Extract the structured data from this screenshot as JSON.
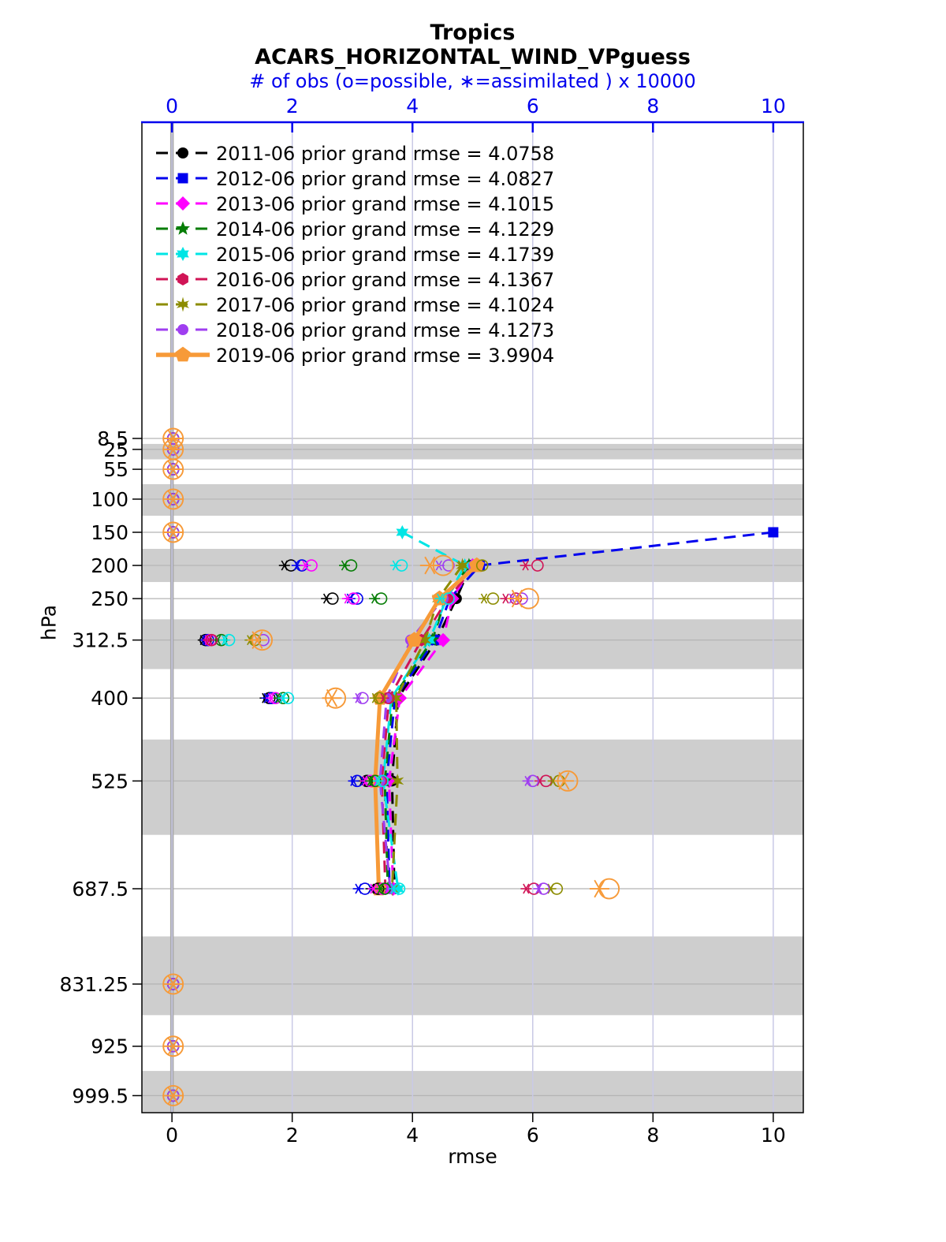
{
  "chart_data": {
    "type": "line",
    "title": "Tropics",
    "subtitle": "ACARS_HORIZONTAL_WIND_VPguess",
    "top_axis_label": "# of obs (o=possible, ∗=assimilated ) x 10000",
    "xlabel": "rmse",
    "ylabel": "hPa",
    "x_ticks": [
      0,
      2,
      4,
      6,
      8,
      10
    ],
    "top_ticks": [
      0,
      2,
      4,
      6,
      8,
      10
    ],
    "xlim": [
      -0.5,
      10.5
    ],
    "levels": [
      8.5,
      25,
      55,
      100,
      150,
      200,
      250,
      312.5,
      400,
      525,
      687.5,
      831.25,
      925,
      999.5
    ],
    "shaded_levels": [
      25,
      100,
      200,
      312.5,
      525,
      831.25,
      999.5
    ],
    "grid": true,
    "legend_position": "upper-left-inside",
    "colors": {
      "axis_top": "#0000ee",
      "band": "#cecece",
      "hgrid": "#b4b4b4",
      "vgrid": "#c9c9e6",
      "zero_line": "#a8a8a8"
    },
    "series": [
      {
        "label": "2011-06 prior grand rmse = 4.0758",
        "year": "2011-06",
        "grand_rmse": 4.0758,
        "color": "#000000",
        "marker": "circle",
        "line": "dashed",
        "rmse": {
          "200": 4.97,
          "250": 4.73,
          "312.5": 4.4,
          "400": 3.76,
          "525": 3.66,
          "687.5": 3.7
        },
        "assimilated": {
          "8.5": 0.02,
          "25": 0.02,
          "55": 0.02,
          "100": 0.02,
          "150": 0.02,
          "200": 1.87,
          "250": 2.57,
          "312.5": 0.52,
          "400": 1.55,
          "525": 3.17,
          "687.5": 3.31,
          "831.25": 0.02,
          "925": 0.02,
          "999.5": 0.02
        },
        "possible": {
          "8.5": 0.02,
          "25": 0.02,
          "55": 0.02,
          "100": 0.02,
          "150": 0.02,
          "200": 1.98,
          "250": 2.67,
          "312.5": 0.56,
          "400": 1.62,
          "525": 3.24,
          "687.5": 3.43,
          "831.25": 0.02,
          "925": 0.02,
          "999.5": 0.02
        }
      },
      {
        "label": "2012-06 prior grand rmse = 4.0827",
        "year": "2012-06",
        "grand_rmse": 4.0827,
        "color": "#0000ee",
        "marker": "square",
        "line": "dashed",
        "rmse": {
          "150": 10.0,
          "200": 5.12,
          "250": 4.62,
          "312.5": 4.37,
          "400": 3.71,
          "525": 3.57,
          "687.5": 3.62
        },
        "assimilated": {
          "8.5": 0.02,
          "25": 0.02,
          "55": 0.02,
          "100": 0.02,
          "150": 0.02,
          "200": 2.08,
          "250": 2.96,
          "312.5": 0.56,
          "400": 1.58,
          "525": 3.02,
          "687.5": 3.1,
          "831.25": 0.02,
          "925": 0.02,
          "999.5": 0.02
        },
        "possible": {
          "8.5": 0.02,
          "25": 0.02,
          "55": 0.02,
          "100": 0.02,
          "150": 0.02,
          "200": 2.16,
          "250": 3.08,
          "312.5": 0.6,
          "400": 1.66,
          "525": 3.08,
          "687.5": 3.21,
          "831.25": 0.02,
          "925": 0.02,
          "999.5": 0.02
        }
      },
      {
        "label": "2013-06 prior grand rmse = 4.1015",
        "year": "2013-06",
        "grand_rmse": 4.1015,
        "color": "#ff00ff",
        "marker": "diamond",
        "line": "dashed",
        "rmse": {
          "200": 5.0,
          "250": 4.66,
          "312.5": 4.51,
          "400": 3.79,
          "525": 3.61,
          "687.5": 3.68
        },
        "assimilated": {
          "8.5": 0.02,
          "25": 0.02,
          "55": 0.02,
          "100": 0.02,
          "150": 0.02,
          "200": 2.22,
          "250": 2.92,
          "312.5": 0.6,
          "400": 1.65,
          "525": 3.22,
          "687.5": 3.35,
          "831.25": 0.02,
          "925": 0.02,
          "999.5": 0.02
        },
        "possible": {
          "8.5": 0.02,
          "25": 0.02,
          "55": 0.02,
          "100": 0.02,
          "150": 0.02,
          "200": 2.32,
          "250": 3.02,
          "312.5": 0.64,
          "400": 1.72,
          "525": 3.3,
          "687.5": 3.5,
          "831.25": 0.02,
          "925": 0.02,
          "999.5": 0.02
        }
      },
      {
        "label": "2014-06 prior grand rmse = 4.1229",
        "year": "2014-06",
        "grand_rmse": 4.1229,
        "color": "#067d06",
        "marker": "star5",
        "line": "dashed",
        "rmse": {
          "200": 4.94,
          "250": 4.55,
          "312.5": 4.33,
          "400": 3.67,
          "525": 3.54,
          "687.5": 3.59
        },
        "assimilated": {
          "8.5": 0.02,
          "25": 0.02,
          "55": 0.02,
          "100": 0.02,
          "150": 0.02,
          "200": 2.87,
          "250": 3.37,
          "312.5": 0.76,
          "400": 1.78,
          "525": 3.3,
          "687.5": 3.47,
          "831.25": 0.02,
          "925": 0.02,
          "999.5": 0.02
        },
        "possible": {
          "8.5": 0.02,
          "25": 0.02,
          "55": 0.02,
          "100": 0.02,
          "150": 0.02,
          "200": 2.98,
          "250": 3.48,
          "312.5": 0.82,
          "400": 1.85,
          "525": 3.38,
          "687.5": 3.54,
          "831.25": 0.02,
          "925": 0.02,
          "999.5": 0.02
        }
      },
      {
        "label": "2015-06 prior grand rmse = 4.1739",
        "year": "2015-06",
        "grand_rmse": 4.1739,
        "color": "#00e5e5",
        "marker": "hexagram",
        "line": "dashed",
        "rmse": {
          "150": 3.83,
          "200": 4.87,
          "250": 4.57,
          "312.5": 4.28,
          "400": 3.65,
          "525": 3.51,
          "687.5": 3.76
        },
        "assimilated": {
          "8.5": 0.02,
          "25": 0.02,
          "55": 0.02,
          "100": 0.02,
          "150": 0.02,
          "200": 3.72,
          "250": 4.46,
          "312.5": 0.88,
          "400": 1.85,
          "525": 3.43,
          "687.5": 3.69,
          "831.25": 0.02,
          "925": 0.02,
          "999.5": 0.02
        },
        "possible": {
          "8.5": 0.02,
          "25": 0.02,
          "55": 0.02,
          "100": 0.02,
          "150": 0.02,
          "200": 3.82,
          "250": 4.6,
          "312.5": 0.95,
          "400": 1.93,
          "525": 3.5,
          "687.5": 3.78,
          "831.25": 0.02,
          "925": 0.02,
          "999.5": 0.02
        }
      },
      {
        "label": "2016-06 prior grand rmse = 4.1367",
        "year": "2016-06",
        "grand_rmse": 4.1367,
        "color": "#d01456",
        "marker": "hexagon",
        "line": "dashed",
        "rmse": {
          "200": 5.05,
          "250": 4.59,
          "312.5": 4.15,
          "400": 3.61,
          "525": 3.49,
          "687.5": 3.55
        },
        "assimilated": {
          "8.5": 0.02,
          "25": 0.02,
          "55": 0.02,
          "100": 0.02,
          "150": 0.02,
          "200": 5.88,
          "250": 5.55,
          "312.5": 0.62,
          "400": 3.52,
          "525": 6.12,
          "687.5": 5.89,
          "831.25": 0.02,
          "925": 0.02,
          "999.5": 0.02
        },
        "possible": {
          "8.5": 0.02,
          "25": 0.02,
          "55": 0.02,
          "100": 0.02,
          "150": 0.02,
          "200": 6.08,
          "250": 5.72,
          "312.5": 0.66,
          "400": 3.6,
          "525": 6.22,
          "687.5": 6.02,
          "831.25": 0.02,
          "925": 0.02,
          "999.5": 0.02
        }
      },
      {
        "label": "2017-06 prior grand rmse = 4.1024",
        "year": "2017-06",
        "grand_rmse": 4.1024,
        "color": "#8c8c00",
        "marker": "star6",
        "line": "dashed",
        "rmse": {
          "200": 4.83,
          "250": 4.43,
          "312.5": 4.21,
          "400": 3.73,
          "525": 3.75,
          "687.5": 3.66
        },
        "assimilated": {
          "8.5": 0.02,
          "25": 0.02,
          "55": 0.02,
          "100": 0.02,
          "150": 0.02,
          "200": 4.81,
          "250": 5.19,
          "312.5": 1.3,
          "400": 3.38,
          "525": 6.34,
          "687.5": 6.3,
          "831.25": 0.02,
          "925": 0.02,
          "999.5": 0.02
        },
        "possible": {
          "8.5": 0.02,
          "25": 0.02,
          "55": 0.02,
          "100": 0.02,
          "150": 0.02,
          "200": 5.16,
          "250": 5.34,
          "312.5": 1.38,
          "400": 3.45,
          "525": 6.44,
          "687.5": 6.4,
          "831.25": 0.02,
          "925": 0.02,
          "999.5": 0.02
        }
      },
      {
        "label": "2018-06 prior grand rmse = 4.1273",
        "year": "2018-06",
        "grand_rmse": 4.1273,
        "color": "#9f3ef0",
        "marker": "circle",
        "line": "dashed",
        "rmse": {
          "200": 5.02,
          "250": 4.51,
          "312.5": 3.97,
          "400": 3.57,
          "525": 3.46,
          "687.5": 3.63
        },
        "assimilated": {
          "8.5": 0.02,
          "25": 0.02,
          "55": 0.02,
          "100": 0.02,
          "150": 0.02,
          "200": 4.44,
          "250": 5.66,
          "312.5": 1.42,
          "400": 3.1,
          "525": 5.92,
          "687.5": 6.1,
          "831.25": 0.02,
          "925": 0.02,
          "999.5": 0.02
        },
        "possible": {
          "8.5": 0.02,
          "25": 0.02,
          "55": 0.02,
          "100": 0.02,
          "150": 0.02,
          "200": 4.6,
          "250": 5.82,
          "312.5": 1.52,
          "400": 3.17,
          "525": 6.0,
          "687.5": 6.18,
          "831.25": 0.02,
          "925": 0.02,
          "999.5": 0.02
        }
      },
      {
        "label": "2019-06 prior grand rmse = 3.9904",
        "year": "2019-06",
        "grand_rmse": 3.9904,
        "color": "#f79a38",
        "marker": "pentagon",
        "line": "solid",
        "emphasis": true,
        "rmse": {
          "200": 5.07,
          "250": 4.45,
          "312.5": 4.03,
          "400": 3.46,
          "525": 3.38,
          "687.5": 3.44
        },
        "assimilated": {
          "8.5": 0.02,
          "25": 0.02,
          "55": 0.02,
          "100": 0.02,
          "150": 0.02,
          "200": 4.29,
          "250": 5.74,
          "312.5": 1.42,
          "400": 2.66,
          "525": 6.52,
          "687.5": 7.11,
          "831.25": 0.02,
          "925": 0.02,
          "999.5": 0.02
        },
        "possible": {
          "8.5": 0.02,
          "25": 0.02,
          "55": 0.02,
          "100": 0.02,
          "150": 0.02,
          "200": 4.51,
          "250": 5.93,
          "312.5": 1.5,
          "400": 2.72,
          "525": 6.58,
          "687.5": 7.27,
          "831.25": 0.02,
          "925": 0.02,
          "999.5": 0.02
        }
      }
    ]
  }
}
